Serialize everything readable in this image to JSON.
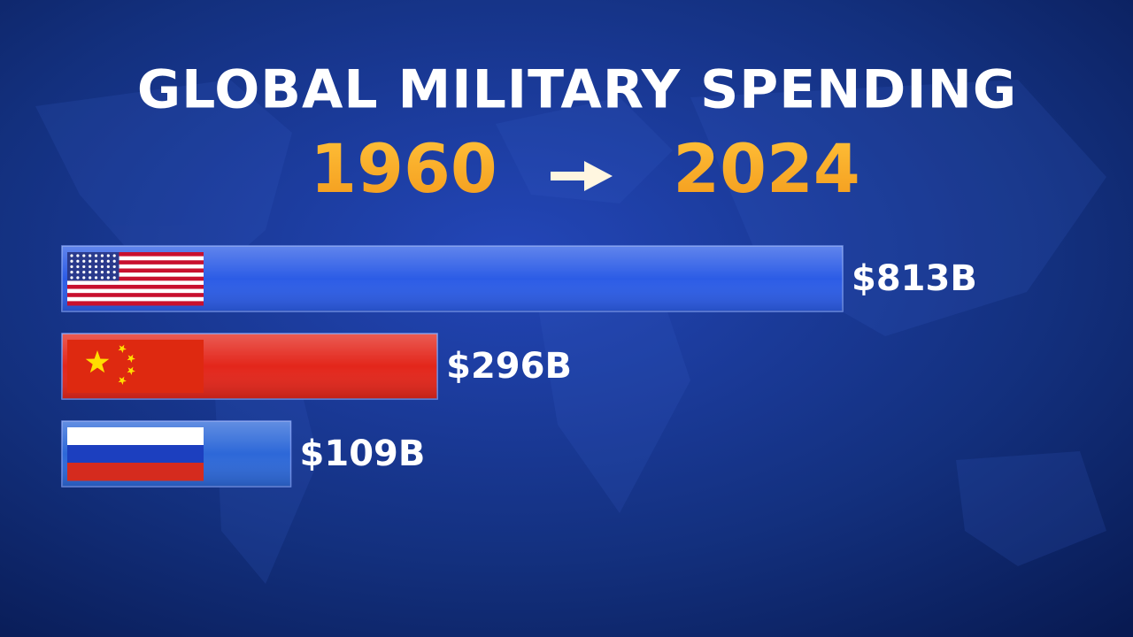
{
  "chart_data": {
    "type": "bar",
    "orientation": "horizontal",
    "title": "GLOBAL MILITARY SPENDING",
    "subtitle": [
      "1960",
      "2024"
    ],
    "values": [
      813,
      296,
      109
    ],
    "value_labels": [
      "$813B",
      "$296B",
      "$109B"
    ],
    "colors": [
      "#2c5ce6",
      "#e3261b",
      "#2d68d8"
    ]
  }
}
